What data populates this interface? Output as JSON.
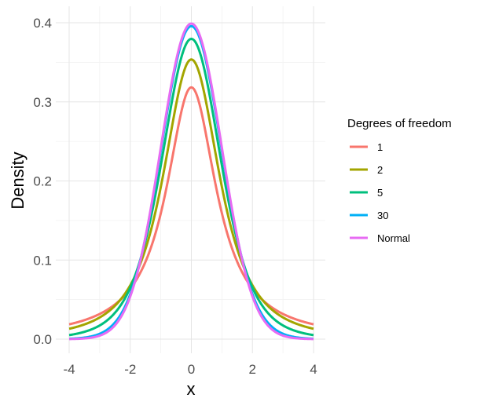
{
  "chart_data": {
    "type": "line",
    "xlabel": "x",
    "ylabel": "Density",
    "xlim": [
      -4,
      4
    ],
    "ylim": [
      0,
      0.4
    ],
    "x_ticks": [
      -4,
      -2,
      0,
      2,
      4
    ],
    "x_tick_labels": [
      "-4",
      "-2",
      "0",
      "2",
      "4"
    ],
    "y_ticks": [
      0,
      0.1,
      0.2,
      0.3,
      0.4
    ],
    "y_tick_labels": [
      "0.0",
      "0.1",
      "0.2",
      "0.3",
      "0.4"
    ],
    "grid": true,
    "legend": {
      "title": "Degrees of freedom",
      "placement": "right"
    },
    "series": [
      {
        "name": "1",
        "color": "#F8766D",
        "distribution": "t",
        "df": 1
      },
      {
        "name": "2",
        "color": "#A3A500",
        "distribution": "t",
        "df": 2
      },
      {
        "name": "5",
        "color": "#00BF7D",
        "distribution": "t",
        "df": 5
      },
      {
        "name": "30",
        "color": "#00B0F6",
        "distribution": "t",
        "df": 30
      },
      {
        "name": "Normal",
        "color": "#E76BF3",
        "distribution": "normal"
      }
    ]
  }
}
